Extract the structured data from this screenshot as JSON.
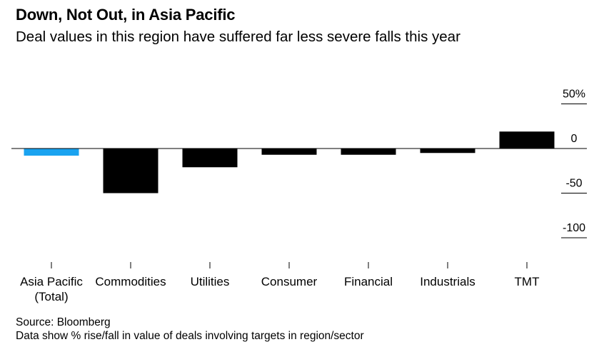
{
  "title": "Down, Not Out, in Asia Pacific",
  "subtitle": "Deal values in this region have suffered far less severe falls this year",
  "source": "Source: Bloomberg",
  "note": "Data show % rise/fall in value of deals involving targets in region/sector",
  "colors": {
    "highlight": "#1aa3f0",
    "bar": "#000000"
  },
  "chart_data": {
    "type": "bar",
    "title": "Down, Not Out, in Asia Pacific",
    "subtitle": "Deal values in this region have suffered far less severe falls this year",
    "categories": [
      [
        "Asia Pacific",
        "(Total)"
      ],
      [
        "Commodities"
      ],
      [
        "Utilities"
      ],
      [
        "Consumer"
      ],
      [
        "Financial"
      ],
      [
        "Industrials"
      ],
      [
        "TMT"
      ]
    ],
    "values": [
      -8,
      -50,
      -21,
      -7,
      -7,
      -5,
      19
    ],
    "highlight_index": 0,
    "ylim": [
      -100,
      50
    ],
    "yticks": [
      50,
      0,
      -50,
      -100
    ],
    "ytick_labels": [
      "50%",
      "0",
      "-50",
      "-100"
    ],
    "y_axis_position": "right",
    "grid": false,
    "xlabel": "",
    "ylabel": ""
  }
}
